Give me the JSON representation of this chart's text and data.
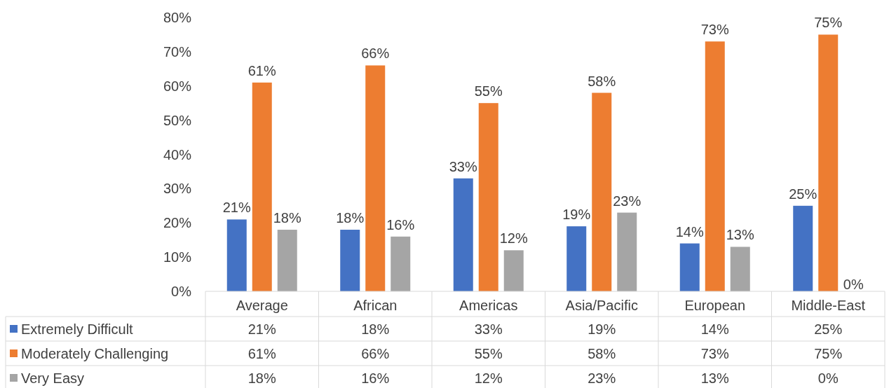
{
  "chart_data": {
    "type": "bar",
    "categories": [
      "Average",
      "African",
      "Americas",
      "Asia/Pacific",
      "European",
      "Middle-East"
    ],
    "series": [
      {
        "name": "Extremely Difficult",
        "color": "#4472c4",
        "values": [
          21,
          18,
          33,
          19,
          14,
          25
        ],
        "value_labels": [
          "21%",
          "18%",
          "33%",
          "19%",
          "14%",
          "25%"
        ]
      },
      {
        "name": "Moderately Challenging",
        "color": "#ed7d31",
        "values": [
          61,
          66,
          55,
          58,
          73,
          75
        ],
        "value_labels": [
          "61%",
          "66%",
          "55%",
          "58%",
          "73%",
          "75%"
        ]
      },
      {
        "name": "Very Easy",
        "color": "#a5a5a5",
        "values": [
          18,
          16,
          12,
          23,
          13,
          0
        ],
        "value_labels": [
          "18%",
          "16%",
          "12%",
          "23%",
          "13%",
          "0%"
        ]
      }
    ],
    "ylim": [
      0,
      80
    ],
    "yticks": [
      {
        "value": 0,
        "label": "0%"
      },
      {
        "value": 10,
        "label": "10%"
      },
      {
        "value": 20,
        "label": "20%"
      },
      {
        "value": 30,
        "label": "30%"
      },
      {
        "value": 40,
        "label": "40%"
      },
      {
        "value": 50,
        "label": "50%"
      },
      {
        "value": 60,
        "label": "60%"
      },
      {
        "value": 70,
        "label": "70%"
      },
      {
        "value": 80,
        "label": "80%"
      }
    ],
    "legend": "bottom"
  }
}
